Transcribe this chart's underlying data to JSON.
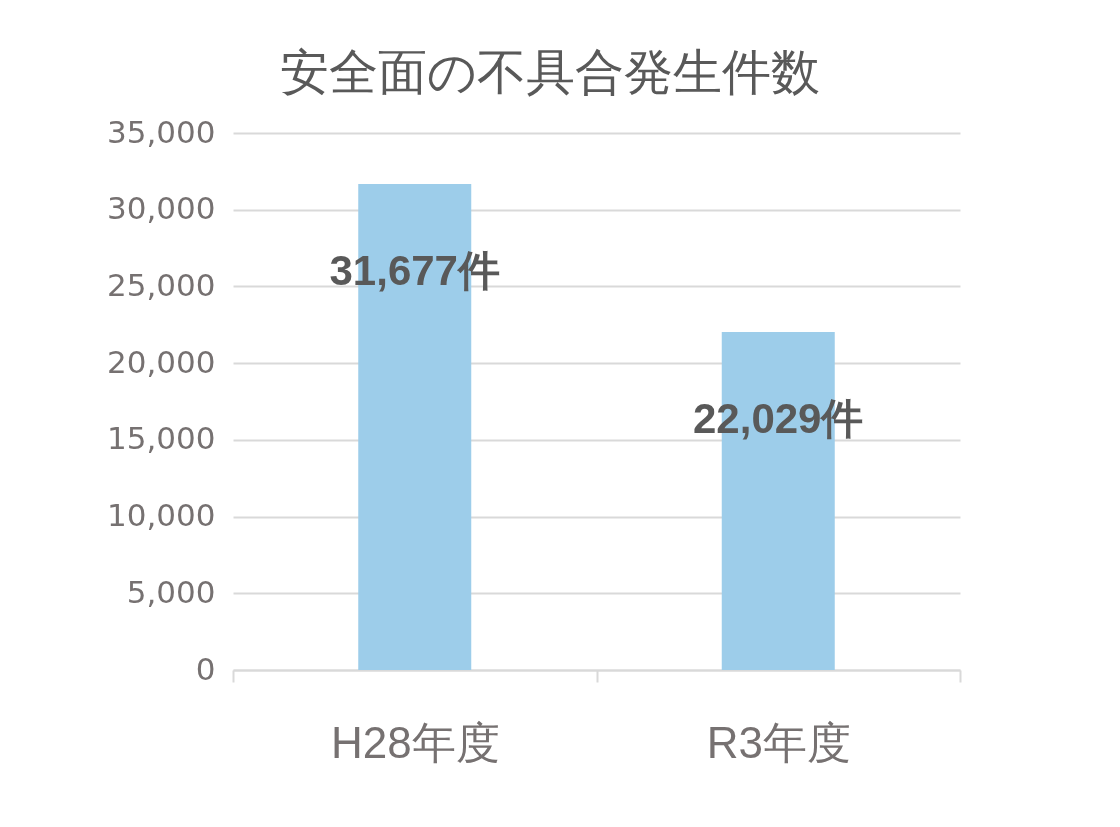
{
  "chart_data": {
    "type": "bar",
    "title": "安全面の不具合発生件数",
    "categories": [
      "H28年度",
      "R3年度"
    ],
    "values": [
      31677,
      22029
    ],
    "value_labels": [
      "31,677件",
      "22,029件"
    ],
    "color": "#9dcdea",
    "ylim": [
      0,
      35000
    ],
    "yticks": [
      0,
      {
        "value": 5000,
        "label": "5,000"
      },
      {
        "value": 10000,
        "label": "10,000"
      },
      {
        "value": 15000,
        "label": "15,000"
      },
      {
        "value": 20000,
        "label": "20,000"
      },
      {
        "value": 25000,
        "label": "25,000"
      },
      {
        "value": 30000,
        "label": "30,000"
      },
      {
        "value": 35000,
        "label": "35,000"
      }
    ],
    "grid": "y"
  }
}
